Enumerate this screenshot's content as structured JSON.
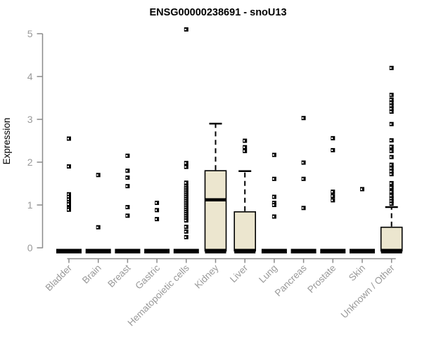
{
  "chart_data": {
    "type": "box",
    "title": "ENSG00000238691 - snoU13",
    "ylabel": "Expression",
    "xlabel": "",
    "ylim": [
      0,
      5
    ],
    "yticks": [
      0,
      1,
      2,
      3,
      4,
      5
    ],
    "grid": false,
    "legend": "none",
    "categories": [
      "Bladder",
      "Brain",
      "Breast",
      "Gastric",
      "Hematopoietic cells",
      "Kidney",
      "Liver",
      "Lung",
      "Pancreas",
      "Prostate",
      "Skin",
      "Unknown / Other"
    ],
    "series": [
      {
        "name": "Bladder",
        "q1": 0,
        "median": 0,
        "q3": 0,
        "whisker_low": 0,
        "whisker_high": 0,
        "outliers": [
          2.55,
          1.9,
          1.25,
          1.19,
          1.13,
          1.07,
          1.02,
          0.93,
          0.89
        ]
      },
      {
        "name": "Brain",
        "q1": 0,
        "median": 0,
        "q3": 0,
        "whisker_low": 0,
        "whisker_high": 0,
        "outliers": [
          1.7,
          0.48
        ]
      },
      {
        "name": "Breast",
        "q1": 0,
        "median": 0,
        "q3": 0,
        "whisker_low": 0,
        "whisker_high": 0,
        "outliers": [
          2.15,
          1.8,
          1.64,
          1.44,
          0.95,
          0.75
        ]
      },
      {
        "name": "Gastric",
        "q1": 0,
        "median": 0,
        "q3": 0,
        "whisker_low": 0,
        "whisker_high": 0,
        "outliers": [
          1.05,
          0.88,
          0.67
        ]
      },
      {
        "name": "Hematopoietic cells",
        "q1": 0,
        "median": 0,
        "q3": 0,
        "whisker_low": 0,
        "whisker_high": 0,
        "outliers": [
          5.1,
          1.98,
          1.89,
          1.52,
          1.44,
          1.39,
          1.34,
          1.29,
          1.24,
          1.19,
          1.14,
          1.09,
          1.04,
          0.99,
          0.94,
          0.89,
          0.84,
          0.79,
          0.74,
          0.69,
          0.64,
          0.49,
          0.38,
          0.25
        ]
      },
      {
        "name": "Kidney",
        "q1": 0,
        "median": 1.12,
        "q3": 1.8,
        "whisker_low": 0,
        "whisker_high": 2.9,
        "outliers": []
      },
      {
        "name": "Liver",
        "q1": 0,
        "median": 0,
        "q3": 0.84,
        "whisker_low": 0,
        "whisker_high": 1.79,
        "outliers": [
          2.5,
          2.35,
          2.26
        ]
      },
      {
        "name": "Lung",
        "q1": 0,
        "median": 0,
        "q3": 0,
        "whisker_low": 0,
        "whisker_high": 0,
        "outliers": [
          2.17,
          1.61,
          1.19,
          1.05,
          1.0,
          0.73
        ]
      },
      {
        "name": "Pancreas",
        "q1": 0,
        "median": 0,
        "q3": 0,
        "whisker_low": 0,
        "whisker_high": 0,
        "outliers": [
          3.03,
          1.99,
          1.61,
          0.93
        ]
      },
      {
        "name": "Prostate",
        "q1": 0,
        "median": 0,
        "q3": 0,
        "whisker_low": 0,
        "whisker_high": 0,
        "outliers": [
          2.56,
          2.28,
          1.31,
          1.21,
          1.11
        ]
      },
      {
        "name": "Skin",
        "q1": 0,
        "median": 0,
        "q3": 0,
        "whisker_low": 0,
        "whisker_high": 0,
        "outliers": [
          1.37
        ]
      },
      {
        "name": "Unknown / Other",
        "q1": 0,
        "median": 0,
        "q3": 0.48,
        "whisker_low": 0,
        "whisker_high": 0.95,
        "outliers": [
          4.2,
          3.57,
          3.46,
          3.39,
          3.32,
          3.25,
          3.18,
          2.89,
          2.51,
          2.36,
          2.26,
          2.12,
          1.94,
          1.86,
          1.79,
          1.72,
          1.51,
          1.41,
          1.31,
          1.22,
          1.15,
          1.09,
          1.03
        ]
      }
    ],
    "colors": {
      "box_fill": "#ece6cf",
      "box_stroke": "#000000",
      "median_line": "#000000",
      "zero_bar": "#000000",
      "outlier": "#000000",
      "outlier_center": "#ffffff",
      "axis_line": "#8a8a8a",
      "tick_text": "#999999",
      "title_text": "#000000"
    }
  }
}
